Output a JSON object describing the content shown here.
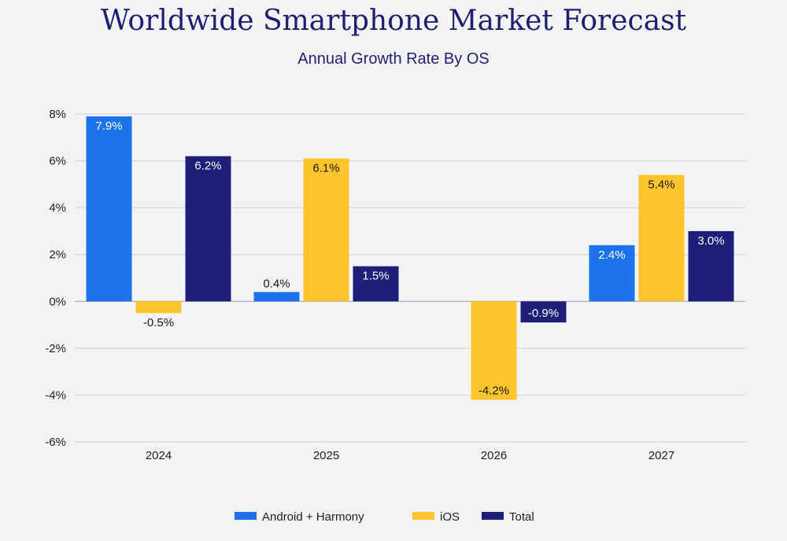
{
  "chart_data": {
    "type": "bar",
    "title": "Worldwide Smartphone Market Forecast",
    "subtitle": "Annual Growth Rate By OS",
    "categories": [
      "2024",
      "2025",
      "2026",
      "2027"
    ],
    "series": [
      {
        "name": "Android + Harmony",
        "color": "#1c73ea",
        "label_color": "#ffffff",
        "values": [
          7.9,
          0.4,
          0.0,
          2.4
        ],
        "labels": [
          "7.9%",
          "0.4%",
          "",
          "2.4%"
        ]
      },
      {
        "name": "iOS",
        "color": "#fcc32c",
        "label_color": "#1a1a1a",
        "values": [
          -0.5,
          6.1,
          -4.2,
          5.4
        ],
        "labels": [
          "-0.5%",
          "6.1%",
          "-4.2%",
          "5.4%"
        ]
      },
      {
        "name": "Total",
        "color": "#1e1f78",
        "label_color": "#ffffff",
        "values": [
          6.2,
          1.5,
          -0.9,
          3.0
        ],
        "labels": [
          "6.2%",
          "1.5%",
          "-0.9%",
          "3.0%"
        ]
      }
    ],
    "ylim": [
      -6,
      8
    ],
    "yticks": [
      8,
      6,
      4,
      2,
      0,
      -2,
      -4,
      -6
    ],
    "ytick_labels": [
      "8%",
      "6%",
      "4%",
      "2%",
      "0%",
      "-2%",
      "-4%",
      "-6%"
    ],
    "grid": true,
    "legend_position": "bottom-center"
  }
}
